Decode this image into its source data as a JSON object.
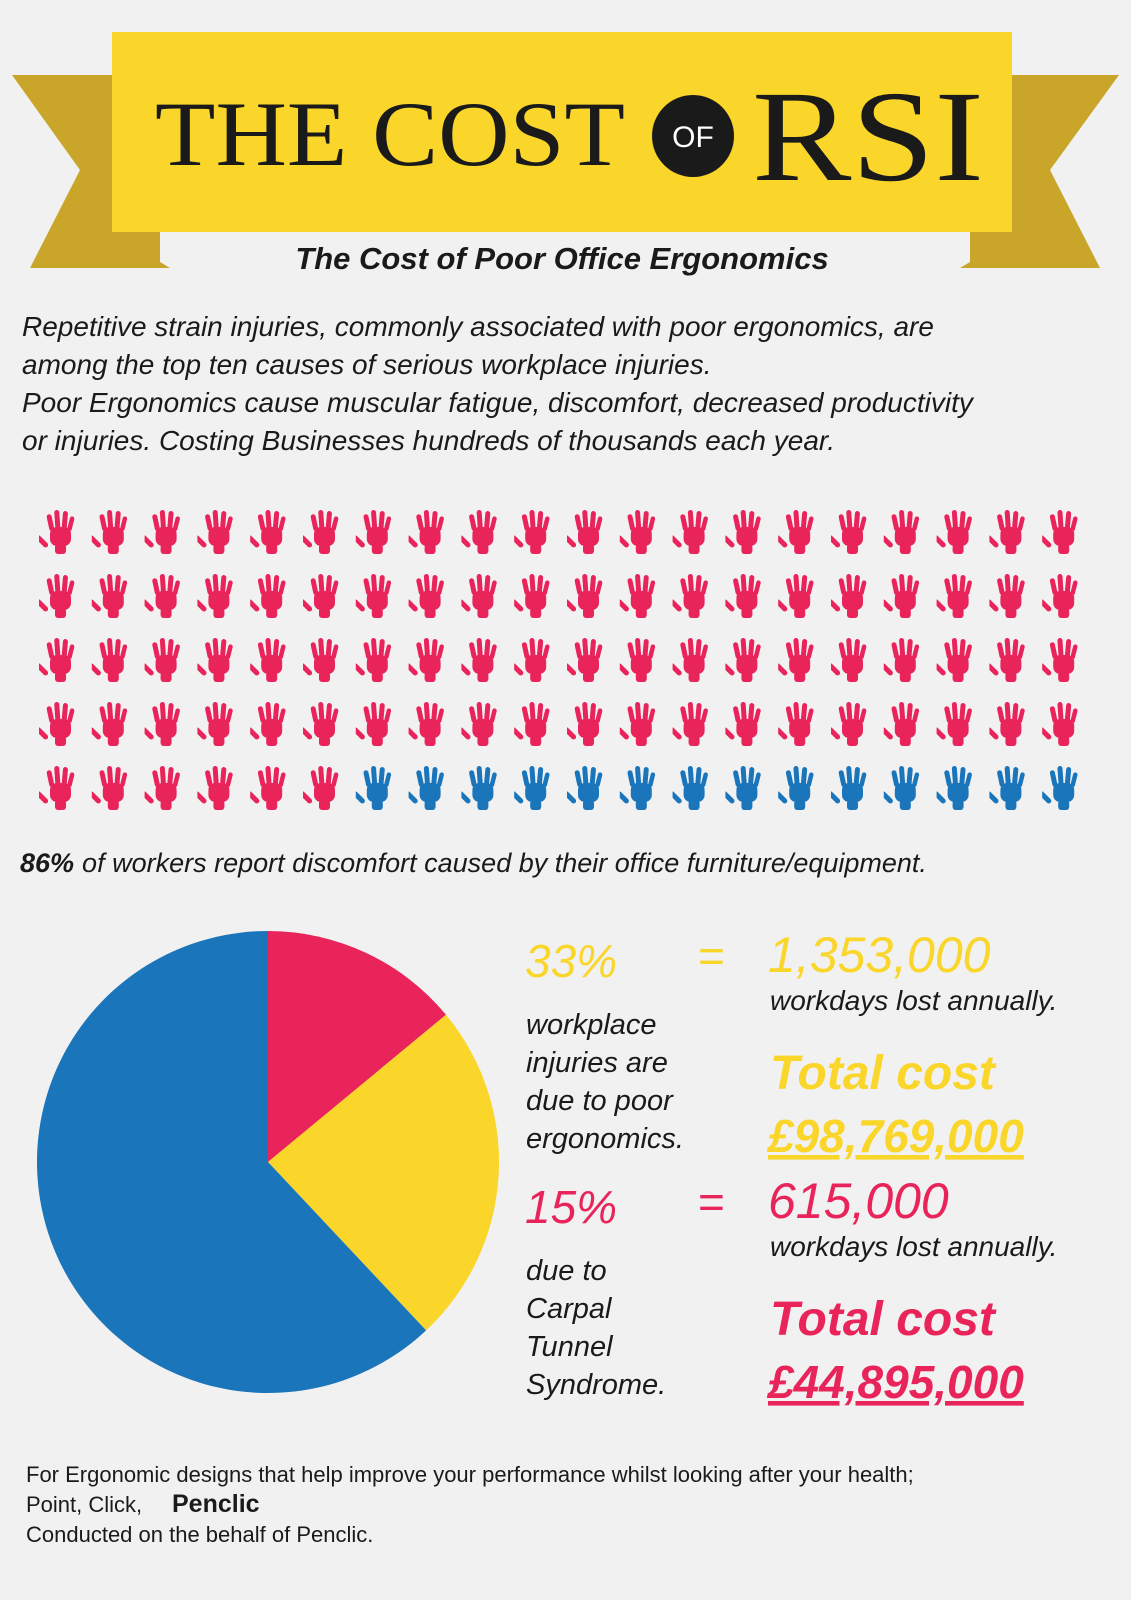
{
  "header": {
    "title_left": "THE COST",
    "title_circle": "OF",
    "title_right": "RSI",
    "subtitle": "The Cost of Poor Office Ergonomics"
  },
  "intro": {
    "lines": [
      "Repetitive strain injuries, commonly associated with poor ergonomics, are",
      "among the top ten causes of serious workplace injuries.",
      "Poor Ergonomics cause muscular fatigue, discomfort, decreased productivity",
      "or injuries. Costing Businesses hundreds of thousands each year."
    ]
  },
  "pictogram": {
    "type": "pictogram",
    "per_row": 20,
    "values": [
      86,
      14
    ],
    "colors": [
      "#e8245a",
      "#1a75bb"
    ]
  },
  "statement": {
    "highlight": "86%",
    "text": "of workers report discomfort caused by their office furniture/equipment."
  },
  "pie": {
    "type": "pie",
    "values": [
      14,
      24,
      62
    ],
    "colors": [
      "#e8245a",
      "#fad52a",
      "#1a75bb"
    ]
  },
  "stats": [
    {
      "percent": "33%",
      "equals": "=",
      "days": "1,353,000",
      "days_label": "workdays lost annually.",
      "description": [
        "workplace",
        "injuries are",
        "due to poor",
        "ergonomics."
      ],
      "total_label": "Total cost",
      "total_value": "£98,769,000",
      "color": "#fad52a"
    },
    {
      "percent": "15%",
      "equals": "=",
      "days": "615,000",
      "days_label": "workdays lost annually.",
      "description": [
        "due to",
        "Carpal",
        "Tunnel",
        "Syndrome."
      ],
      "total_label": "Total cost",
      "total_value": "£44,895,000",
      "color": "#e8245a"
    }
  ],
  "footer": {
    "line1": "For Ergonomic designs that help improve your performance whilst looking after your health;",
    "line2": "Point, Click,",
    "brand": "Penclic",
    "line3": "Conducted on the behalf of Penclic."
  }
}
